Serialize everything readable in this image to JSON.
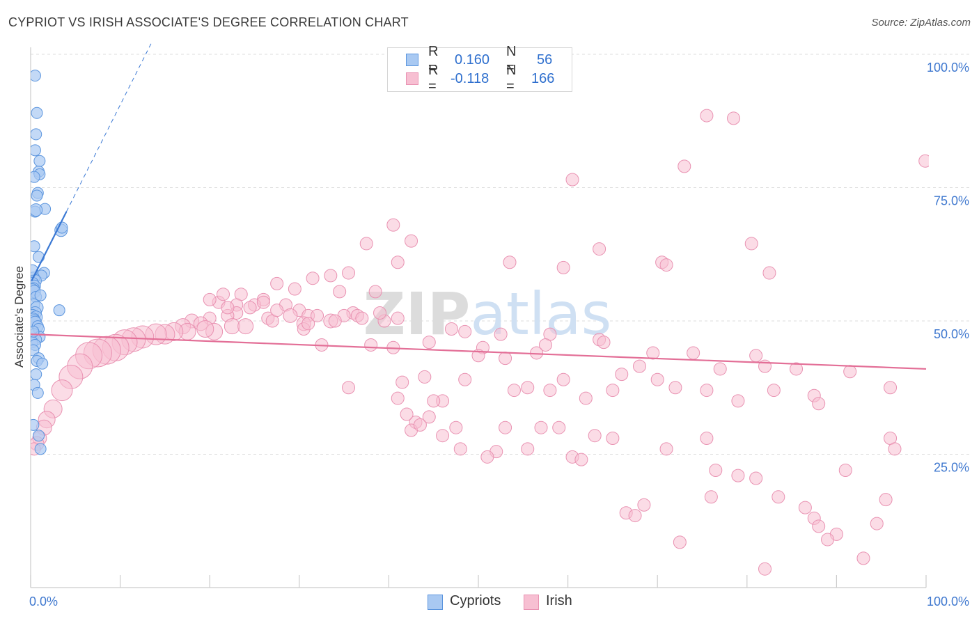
{
  "header": {
    "title": "CYPRIOT VS IRISH ASSOCIATE'S DEGREE CORRELATION CHART",
    "source": "Source: ZipAtlas.com"
  },
  "legend": {
    "r_label": "R =",
    "n_label": "N =",
    "cypriots": {
      "r": "0.160",
      "n": "56"
    },
    "irish": {
      "r": "-0.118",
      "n": "166"
    }
  },
  "bottom_legend": {
    "cypriots": "Cypriots",
    "irish": "Irish"
  },
  "colors": {
    "blue_fill": "#a9c9f2",
    "blue_stroke": "#5b95de",
    "blue_line": "#3a78d4",
    "pink_fill": "#f7bfd2",
    "pink_stroke": "#e992b2",
    "pink_line": "#e36f97",
    "tick_text": "#3f78cf",
    "grid": "#dddddd"
  },
  "chart_data": {
    "type": "scatter",
    "title": "CYPRIOT VS IRISH ASSOCIATE'S DEGREE CORRELATION CHART",
    "xlabel": "",
    "ylabel": "Associate's Degree",
    "xlim": [
      0,
      100
    ],
    "ylim": [
      0,
      100
    ],
    "x_tick_labels": [
      "0.0%",
      "100.0%"
    ],
    "y_ticks": [
      {
        "value": 100,
        "label": "100.0%"
      },
      {
        "value": 75,
        "label": "75.0%"
      },
      {
        "value": 50,
        "label": "50.0%"
      },
      {
        "value": 25,
        "label": "25.0%"
      }
    ],
    "watermark": "ZIPatlas",
    "series": [
      {
        "name": "Cypriots",
        "r": 0.16,
        "n": 56,
        "trend": {
          "x": [
            0.1,
            4.0
          ],
          "y": [
            57.5,
            70.5
          ],
          "extend_to_x": 15.0
        },
        "points": [
          [
            0.5,
            96.0
          ],
          [
            0.7,
            89.0
          ],
          [
            0.6,
            85.0
          ],
          [
            0.5,
            82.0
          ],
          [
            1.0,
            80.0
          ],
          [
            0.9,
            78.0
          ],
          [
            1.0,
            77.5
          ],
          [
            0.4,
            77.0
          ],
          [
            0.8,
            74.0
          ],
          [
            0.7,
            73.5
          ],
          [
            1.6,
            71.0
          ],
          [
            0.5,
            70.5
          ],
          [
            0.6,
            70.8
          ],
          [
            3.4,
            67.0
          ],
          [
            3.5,
            67.5
          ],
          [
            0.4,
            64.0
          ],
          [
            0.9,
            62.0
          ],
          [
            1.5,
            59.0
          ],
          [
            1.2,
            58.5
          ],
          [
            0.3,
            58.0
          ],
          [
            0.5,
            57.5
          ],
          [
            0.2,
            57.0
          ],
          [
            0.4,
            56.5
          ],
          [
            0.3,
            56.0
          ],
          [
            0.2,
            55.8
          ],
          [
            0.4,
            55.5
          ],
          [
            0.6,
            54.5
          ],
          [
            1.1,
            54.8
          ],
          [
            0.3,
            53.0
          ],
          [
            0.7,
            52.5
          ],
          [
            3.2,
            52.0
          ],
          [
            0.5,
            51.5
          ],
          [
            0.2,
            51.0
          ],
          [
            0.6,
            50.7
          ],
          [
            0.3,
            50.3
          ],
          [
            0.4,
            50.0
          ],
          [
            0.5,
            49.7
          ],
          [
            0.8,
            49.0
          ],
          [
            0.9,
            48.5
          ],
          [
            0.4,
            47.5
          ],
          [
            1.0,
            47.0
          ],
          [
            0.6,
            46.5
          ],
          [
            0.2,
            46.0
          ],
          [
            0.5,
            45.5
          ],
          [
            0.3,
            44.5
          ],
          [
            0.9,
            43.0
          ],
          [
            0.7,
            42.5
          ],
          [
            1.3,
            42.0
          ],
          [
            0.6,
            40.0
          ],
          [
            0.4,
            38.0
          ],
          [
            0.8,
            36.5
          ],
          [
            0.9,
            28.5
          ],
          [
            1.1,
            26.0
          ],
          [
            0.3,
            30.5
          ],
          [
            0.2,
            59.5
          ],
          [
            0.3,
            48.0
          ]
        ],
        "sizes": [
          8,
          8,
          8,
          8,
          8,
          8,
          8,
          8,
          8,
          8,
          8,
          8,
          9,
          9,
          8,
          8,
          8,
          8,
          8,
          9,
          9,
          9,
          9,
          9,
          9,
          9,
          8,
          8,
          9,
          9,
          8,
          9,
          9,
          9,
          9,
          9,
          9,
          8,
          8,
          8,
          8,
          8,
          8,
          8,
          8,
          8,
          8,
          8,
          8,
          8,
          8,
          8,
          8,
          8,
          8,
          8
        ]
      },
      {
        "name": "Irish",
        "r": -0.118,
        "n": 166,
        "trend": {
          "x": [
            0.0,
            100.0
          ],
          "y": [
            47.5,
            41.0
          ]
        },
        "points": [
          [
            75.5,
            88.5
          ],
          [
            78.5,
            88.0
          ],
          [
            99.9,
            80.0
          ],
          [
            73.0,
            79.0
          ],
          [
            60.5,
            76.5
          ],
          [
            40.5,
            68.0
          ],
          [
            42.5,
            65.0
          ],
          [
            37.5,
            64.5
          ],
          [
            41.0,
            61.0
          ],
          [
            80.5,
            64.5
          ],
          [
            63.5,
            63.5
          ],
          [
            53.5,
            61.0
          ],
          [
            70.5,
            61.0
          ],
          [
            71.0,
            60.5
          ],
          [
            59.5,
            60.0
          ],
          [
            82.5,
            59.0
          ],
          [
            35.5,
            59.0
          ],
          [
            31.5,
            58.0
          ],
          [
            33.5,
            58.5
          ],
          [
            27.5,
            57.0
          ],
          [
            29.5,
            56.0
          ],
          [
            23.5,
            55.0
          ],
          [
            38.5,
            55.5
          ],
          [
            34.5,
            55.5
          ],
          [
            26.0,
            54.0
          ],
          [
            21.0,
            53.5
          ],
          [
            25.0,
            53.0
          ],
          [
            23.0,
            53.0
          ],
          [
            28.5,
            53.0
          ],
          [
            30.0,
            52.0
          ],
          [
            31.0,
            51.0
          ],
          [
            36.0,
            51.5
          ],
          [
            23.0,
            51.5
          ],
          [
            26.5,
            50.5
          ],
          [
            20.0,
            50.5
          ],
          [
            22.0,
            51.0
          ],
          [
            27.0,
            50.0
          ],
          [
            29.0,
            51.0
          ],
          [
            18.0,
            50.0
          ],
          [
            19.0,
            49.5
          ],
          [
            30.5,
            49.5
          ],
          [
            33.5,
            50.0
          ],
          [
            17.0,
            49.0
          ],
          [
            22.5,
            49.0
          ],
          [
            24.0,
            49.0
          ],
          [
            17.5,
            48.0
          ],
          [
            20.5,
            48.0
          ],
          [
            19.5,
            48.5
          ],
          [
            16.0,
            48.0
          ],
          [
            15.0,
            47.5
          ],
          [
            14.0,
            47.5
          ],
          [
            12.5,
            47.0
          ],
          [
            11.5,
            46.5
          ],
          [
            10.5,
            46.0
          ],
          [
            9.5,
            45.0
          ],
          [
            8.5,
            44.5
          ],
          [
            7.5,
            44.0
          ],
          [
            6.5,
            43.5
          ],
          [
            5.5,
            41.5
          ],
          [
            4.5,
            39.5
          ],
          [
            3.5,
            37.0
          ],
          [
            2.5,
            33.5
          ],
          [
            1.8,
            31.5
          ],
          [
            1.5,
            30.0
          ],
          [
            1.0,
            28.0
          ],
          [
            0.7,
            27.0
          ],
          [
            0.4,
            26.0
          ],
          [
            35.0,
            51.0
          ],
          [
            36.5,
            51.0
          ],
          [
            39.5,
            50.0
          ],
          [
            41.0,
            50.5
          ],
          [
            48.5,
            48.0
          ],
          [
            47.0,
            48.5
          ],
          [
            44.5,
            46.0
          ],
          [
            32.5,
            45.5
          ],
          [
            38.0,
            45.5
          ],
          [
            40.5,
            45.0
          ],
          [
            52.5,
            47.5
          ],
          [
            58.0,
            47.5
          ],
          [
            63.5,
            46.5
          ],
          [
            64.0,
            46.0
          ],
          [
            57.5,
            45.5
          ],
          [
            50.5,
            45.0
          ],
          [
            56.5,
            44.0
          ],
          [
            50.0,
            43.5
          ],
          [
            53.0,
            43.0
          ],
          [
            69.5,
            44.0
          ],
          [
            74.0,
            44.0
          ],
          [
            81.0,
            43.5
          ],
          [
            77.0,
            41.0
          ],
          [
            82.0,
            41.5
          ],
          [
            85.5,
            41.0
          ],
          [
            91.5,
            40.5
          ],
          [
            68.0,
            41.5
          ],
          [
            66.0,
            40.0
          ],
          [
            70.0,
            39.0
          ],
          [
            54.0,
            37.0
          ],
          [
            35.5,
            37.5
          ],
          [
            41.5,
            38.5
          ],
          [
            44.0,
            39.5
          ],
          [
            48.5,
            39.0
          ],
          [
            59.5,
            39.0
          ],
          [
            58.0,
            37.0
          ],
          [
            65.0,
            37.0
          ],
          [
            72.0,
            37.5
          ],
          [
            75.5,
            37.0
          ],
          [
            83.0,
            37.0
          ],
          [
            96.0,
            37.5
          ],
          [
            46.0,
            35.0
          ],
          [
            55.5,
            37.5
          ],
          [
            62.0,
            35.5
          ],
          [
            87.5,
            36.0
          ],
          [
            88.0,
            34.5
          ],
          [
            79.0,
            35.0
          ],
          [
            43.0,
            31.0
          ],
          [
            42.5,
            29.5
          ],
          [
            43.5,
            30.5
          ],
          [
            47.5,
            30.0
          ],
          [
            53.0,
            30.0
          ],
          [
            57.0,
            30.0
          ],
          [
            59.0,
            30.0
          ],
          [
            63.0,
            28.5
          ],
          [
            65.0,
            28.0
          ],
          [
            75.5,
            28.0
          ],
          [
            96.0,
            28.0
          ],
          [
            55.5,
            26.0
          ],
          [
            52.0,
            25.5
          ],
          [
            51.0,
            24.5
          ],
          [
            60.5,
            24.5
          ],
          [
            61.5,
            24.0
          ],
          [
            76.5,
            22.0
          ],
          [
            79.0,
            21.0
          ],
          [
            81.0,
            20.5
          ],
          [
            76.0,
            17.0
          ],
          [
            83.5,
            17.0
          ],
          [
            95.5,
            16.5
          ],
          [
            90.0,
            10.0
          ],
          [
            89.0,
            9.0
          ],
          [
            87.5,
            13.0
          ],
          [
            94.5,
            12.0
          ],
          [
            88.0,
            11.5
          ],
          [
            71.0,
            26.0
          ],
          [
            91.0,
            22.0
          ],
          [
            68.5,
            15.5
          ],
          [
            96.5,
            26.0
          ],
          [
            82.0,
            3.5
          ],
          [
            93.0,
            5.5
          ],
          [
            66.5,
            14.0
          ],
          [
            67.5,
            13.5
          ],
          [
            72.5,
            8.5
          ],
          [
            86.5,
            15.0
          ],
          [
            41.0,
            35.5
          ],
          [
            42.0,
            32.5
          ],
          [
            45.0,
            35.0
          ],
          [
            44.5,
            32.0
          ],
          [
            46.0,
            28.5
          ],
          [
            48.0,
            26.0
          ],
          [
            30.5,
            48.5
          ],
          [
            31.0,
            49.5
          ],
          [
            32.0,
            51.0
          ],
          [
            27.5,
            52.0
          ],
          [
            26.0,
            53.5
          ],
          [
            24.5,
            52.5
          ],
          [
            20.0,
            54.0
          ],
          [
            21.5,
            55.0
          ],
          [
            22.0,
            52.5
          ],
          [
            37.0,
            50.5
          ],
          [
            39.0,
            51.5
          ],
          [
            34.0,
            50.0
          ]
        ],
        "sizes": [
          9,
          9,
          9,
          9,
          9,
          9,
          9,
          9,
          9,
          9,
          9,
          9,
          9,
          9,
          9,
          9,
          9,
          9,
          9,
          9,
          9,
          9,
          9,
          9,
          9,
          9,
          9,
          9,
          9,
          9,
          9,
          9,
          9,
          9,
          9,
          9,
          9,
          10,
          10,
          10,
          10,
          10,
          11,
          11,
          11,
          12,
          12,
          12,
          13,
          14,
          15,
          16,
          17,
          18,
          19,
          20,
          20,
          19,
          18,
          17,
          15,
          13,
          12,
          11,
          10,
          10,
          9,
          9,
          9,
          9,
          9,
          9,
          9,
          9,
          9,
          9,
          9,
          9,
          9,
          9,
          9,
          9,
          9,
          9,
          9,
          9,
          9,
          9,
          9,
          9,
          9,
          9,
          9,
          9,
          9,
          9,
          9,
          9,
          9,
          9,
          9,
          9,
          9,
          9,
          9,
          9,
          9,
          9,
          9,
          9,
          9,
          9,
          9,
          9,
          9,
          9,
          9,
          9,
          9,
          9,
          9,
          9,
          9,
          9,
          9,
          9,
          9,
          9,
          9,
          9,
          9,
          9,
          9,
          9,
          9,
          9,
          9,
          9,
          9,
          9,
          9,
          9,
          9,
          9,
          9,
          9,
          9,
          9,
          9,
          9,
          9,
          9,
          9,
          9,
          9,
          9,
          9,
          9,
          9,
          9,
          9,
          9,
          9,
          9,
          9,
          9,
          9,
          9
        ]
      }
    ]
  }
}
